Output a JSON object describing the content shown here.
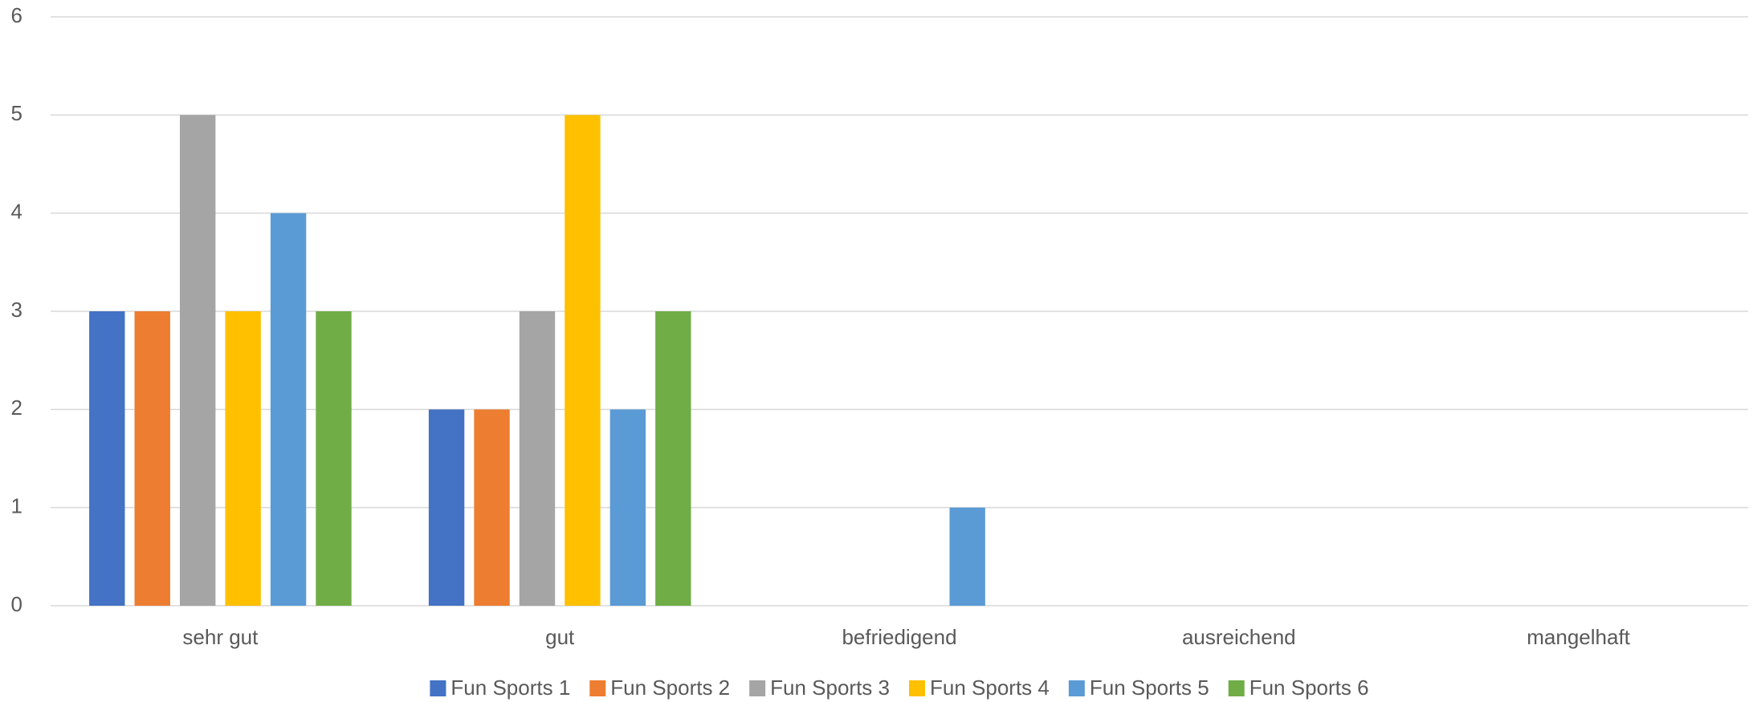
{
  "chart_data": {
    "type": "bar",
    "categories": [
      "sehr gut",
      "gut",
      "befriedigend",
      "ausreichend",
      "mangelhaft"
    ],
    "series": [
      {
        "name": "Fun Sports 1",
        "color": "#4472c4",
        "values": [
          3,
          2,
          0,
          0,
          0
        ]
      },
      {
        "name": "Fun Sports 2",
        "color": "#ed7d31",
        "values": [
          3,
          2,
          0,
          0,
          0
        ]
      },
      {
        "name": "Fun Sports 3",
        "color": "#a5a5a5",
        "values": [
          5,
          3,
          0,
          0,
          0
        ]
      },
      {
        "name": "Fun Sports 4",
        "color": "#ffc000",
        "values": [
          3,
          5,
          0,
          0,
          0
        ]
      },
      {
        "name": "Fun Sports 5",
        "color": "#5b9bd5",
        "values": [
          4,
          2,
          1,
          0,
          0
        ]
      },
      {
        "name": "Fun Sports 6",
        "color": "#70ad47",
        "values": [
          3,
          3,
          0,
          0,
          0
        ]
      }
    ],
    "ylim": [
      0,
      6
    ],
    "yticks": [
      0,
      1,
      2,
      3,
      4,
      5,
      6
    ],
    "grid": true,
    "legend": "bottom"
  }
}
